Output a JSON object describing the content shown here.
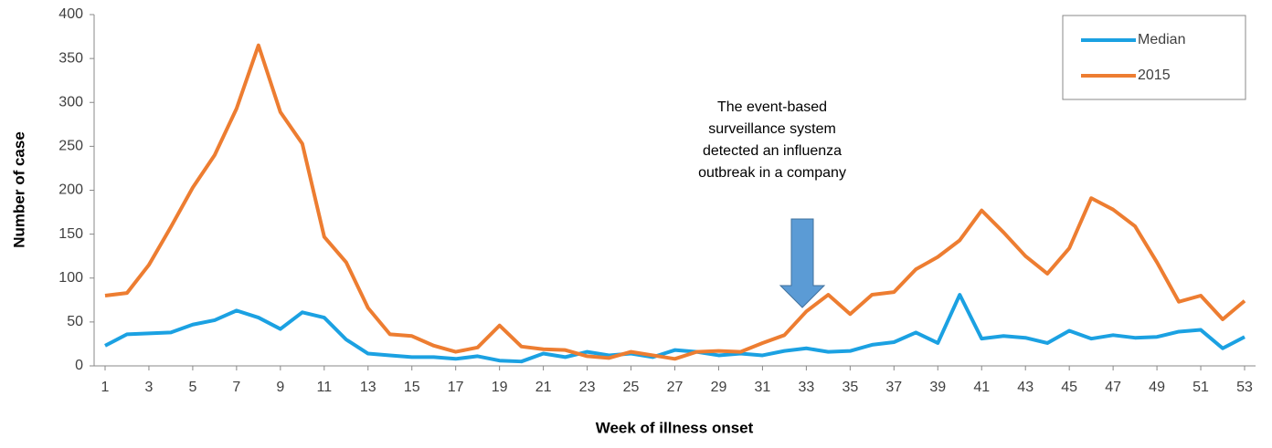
{
  "chart_data": {
    "type": "line",
    "x_label": "Week of illness onset",
    "y_label": "Number of case",
    "annotation": [
      "The event-based",
      "surveillance system",
      "detected an influenza",
      "outbreak in a company"
    ],
    "x": [
      1,
      2,
      3,
      4,
      5,
      6,
      7,
      8,
      9,
      10,
      11,
      12,
      13,
      14,
      15,
      16,
      17,
      18,
      19,
      20,
      21,
      22,
      23,
      24,
      25,
      26,
      27,
      28,
      29,
      30,
      31,
      32,
      33,
      34,
      35,
      36,
      37,
      38,
      39,
      40,
      41,
      42,
      43,
      44,
      45,
      46,
      47,
      48,
      49,
      50,
      51,
      52,
      53
    ],
    "xlim": [
      0.5,
      53.5
    ],
    "xticks": [
      1,
      3,
      5,
      7,
      9,
      11,
      13,
      15,
      17,
      19,
      21,
      23,
      25,
      27,
      29,
      31,
      33,
      35,
      37,
      39,
      41,
      43,
      45,
      47,
      49,
      51,
      53
    ],
    "ylim": [
      0,
      400
    ],
    "yticks": [
      0,
      50,
      100,
      150,
      200,
      250,
      300,
      350,
      400
    ],
    "grid": false,
    "legend": "upper right",
    "series": [
      {
        "name": "Median",
        "color": "#1ba1e2",
        "values": [
          23,
          36,
          37,
          38,
          47,
          52,
          63,
          55,
          42,
          61,
          55,
          30,
          14,
          12,
          10,
          10,
          8,
          11,
          6,
          5,
          14,
          10,
          16,
          12,
          14,
          10,
          18,
          16,
          12,
          14,
          12,
          17,
          20,
          16,
          17,
          24,
          27,
          38,
          26,
          81,
          31,
          34,
          32,
          26,
          40,
          31,
          35,
          32,
          33,
          39,
          41,
          20,
          33
        ]
      },
      {
        "name": "2015",
        "color": "#ed7d31",
        "values": [
          80,
          83,
          115,
          158,
          203,
          240,
          293,
          365,
          289,
          253,
          147,
          118,
          66,
          36,
          34,
          23,
          16,
          21,
          46,
          22,
          19,
          18,
          11,
          9,
          16,
          12,
          8,
          16,
          17,
          16,
          26,
          35,
          62,
          81,
          59,
          81,
          84,
          110,
          124,
          143,
          177,
          152,
          125,
          105,
          134,
          191,
          178,
          159,
          118,
          73,
          80,
          53,
          74
        ]
      }
    ]
  }
}
